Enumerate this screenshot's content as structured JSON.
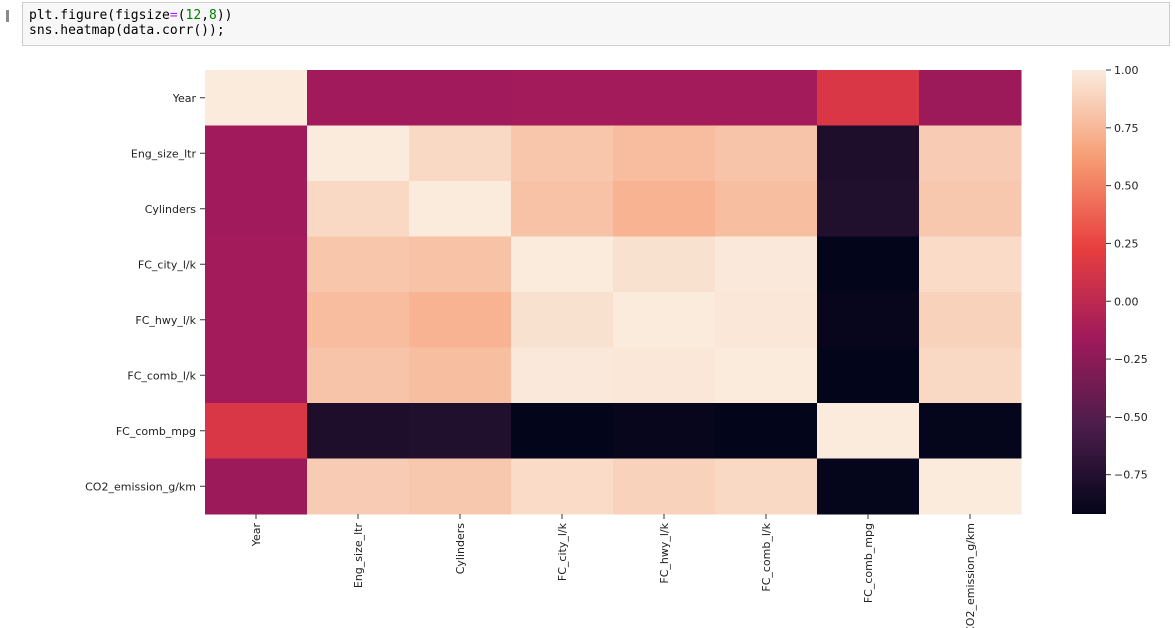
{
  "notebook": {
    "code_lines": [
      {
        "parts": [
          {
            "t": "plt.figure(figsize",
            "c": "var"
          },
          {
            "t": "=",
            "c": "op"
          },
          {
            "t": "(",
            "c": "var"
          },
          {
            "t": "12",
            "c": "num"
          },
          {
            "t": ",",
            "c": "var"
          },
          {
            "t": "8",
            "c": "num"
          },
          {
            "t": "))",
            "c": "var"
          }
        ]
      },
      {
        "parts": [
          {
            "t": "sns.heatmap(data.corr());",
            "c": "var"
          }
        ]
      }
    ]
  },
  "chart_data": {
    "type": "heatmap",
    "title": "",
    "xlabel": "",
    "ylabel": "",
    "labels": [
      "Year",
      "Eng_size_ltr",
      "Cylinders",
      "FC_city_l/k",
      "FC_hwy_l/k",
      "FC_comb_l/k",
      "FC_comb_mpg",
      "CO2_emission_g/km"
    ],
    "matrix": [
      [
        1.0,
        -0.15,
        -0.15,
        -0.14,
        -0.14,
        -0.14,
        0.15,
        -0.17
      ],
      [
        -0.15,
        1.0,
        0.91,
        0.82,
        0.77,
        0.81,
        -0.78,
        0.85
      ],
      [
        -0.15,
        0.91,
        1.0,
        0.8,
        0.73,
        0.78,
        -0.76,
        0.83
      ],
      [
        -0.14,
        0.82,
        0.8,
        1.0,
        0.95,
        0.99,
        -0.92,
        0.92
      ],
      [
        -0.14,
        0.77,
        0.73,
        0.95,
        1.0,
        0.98,
        -0.9,
        0.88
      ],
      [
        -0.14,
        0.81,
        0.78,
        0.99,
        0.98,
        1.0,
        -0.92,
        0.91
      ],
      [
        0.15,
        -0.78,
        -0.76,
        -0.92,
        -0.9,
        -0.92,
        1.0,
        -0.91
      ],
      [
        -0.17,
        0.85,
        0.83,
        0.92,
        0.88,
        0.91,
        -0.91,
        1.0
      ]
    ],
    "colorbar": {
      "min": -0.92,
      "max": 1.0,
      "ticks": [
        1.0,
        0.75,
        0.5,
        0.25,
        0.0,
        -0.25,
        -0.5,
        -0.75
      ],
      "tick_labels": [
        "1.00",
        "0.75",
        "0.50",
        "0.25",
        "0.00",
        "−0.25",
        "−0.50",
        "−0.75"
      ]
    },
    "colormap": "rocket",
    "colormap_stops": [
      "#03051a",
      "#4c1d4b",
      "#a11a5b",
      "#e83f3f",
      "#f69c73",
      "#faebdd"
    ]
  }
}
